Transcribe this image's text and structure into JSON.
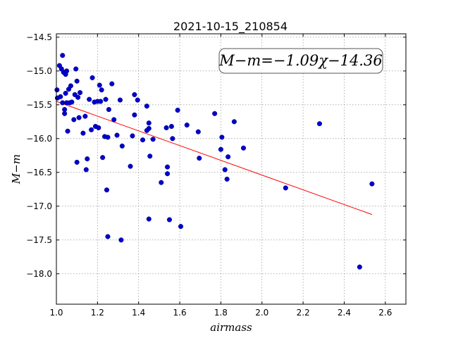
{
  "chart_data": {
    "type": "scatter",
    "title": "2021-10-15_210854",
    "xlabel": "airmass",
    "ylabel": "M−m",
    "xlim": [
      1.0,
      2.7
    ],
    "ylim": [
      -18.45,
      -14.45
    ],
    "y_inverted": true,
    "grid": true,
    "xticks": [
      "1.0",
      "1.2",
      "1.4",
      "1.6",
      "1.8",
      "2.0",
      "2.2",
      "2.4",
      "2.6"
    ],
    "yticks": [
      "−14.5",
      "−15.0",
      "−15.5",
      "−16.0",
      "−16.5",
      "−17.0",
      "−17.5",
      "−18.0"
    ],
    "annotation": "M−m=−1.09χ−14.36",
    "point_color": "#0000cc",
    "fit_color": "#ff0000",
    "fit_line": {
      "slope": -1.09,
      "intercept": -14.36,
      "x_range": [
        1.0,
        2.535
      ]
    },
    "points": [
      [
        1.003,
        -15.28
      ],
      [
        1.005,
        -15.4
      ],
      [
        1.015,
        -14.92
      ],
      [
        1.02,
        -15.38
      ],
      [
        1.025,
        -14.97
      ],
      [
        1.03,
        -14.77
      ],
      [
        1.035,
        -15.02
      ],
      [
        1.03,
        -15.47
      ],
      [
        1.04,
        -15.57
      ],
      [
        1.04,
        -15.63
      ],
      [
        1.045,
        -15.05
      ],
      [
        1.045,
        -15.33
      ],
      [
        1.05,
        -15.47
      ],
      [
        1.05,
        -15.0
      ],
      [
        1.055,
        -15.89
      ],
      [
        1.06,
        -15.27
      ],
      [
        1.065,
        -15.47
      ],
      [
        1.07,
        -15.22
      ],
      [
        1.075,
        -15.46
      ],
      [
        1.085,
        -15.72
      ],
      [
        1.09,
        -15.35
      ],
      [
        1.095,
        -14.97
      ],
      [
        1.1,
        -15.15
      ],
      [
        1.1,
        -16.35
      ],
      [
        1.105,
        -15.39
      ],
      [
        1.11,
        -15.69
      ],
      [
        1.115,
        -15.32
      ],
      [
        1.13,
        -15.92
      ],
      [
        1.14,
        -15.67
      ],
      [
        1.145,
        -16.46
      ],
      [
        1.15,
        -16.3
      ],
      [
        1.16,
        -15.42
      ],
      [
        1.17,
        -15.87
      ],
      [
        1.175,
        -15.1
      ],
      [
        1.185,
        -15.46
      ],
      [
        1.19,
        -15.82
      ],
      [
        1.2,
        -15.45
      ],
      [
        1.205,
        -15.84
      ],
      [
        1.21,
        -15.21
      ],
      [
        1.215,
        -15.45
      ],
      [
        1.22,
        -15.28
      ],
      [
        1.225,
        -16.28
      ],
      [
        1.235,
        -15.97
      ],
      [
        1.24,
        -15.42
      ],
      [
        1.245,
        -16.76
      ],
      [
        1.25,
        -15.98
      ],
      [
        1.25,
        -17.45
      ],
      [
        1.255,
        -15.57
      ],
      [
        1.27,
        -15.19
      ],
      [
        1.28,
        -15.72
      ],
      [
        1.295,
        -15.95
      ],
      [
        1.31,
        -15.43
      ],
      [
        1.315,
        -17.5
      ],
      [
        1.32,
        -16.11
      ],
      [
        1.36,
        -16.41
      ],
      [
        1.37,
        -15.96
      ],
      [
        1.38,
        -15.35
      ],
      [
        1.38,
        -15.65
      ],
      [
        1.395,
        -15.43
      ],
      [
        1.42,
        -16.02
      ],
      [
        1.44,
        -15.52
      ],
      [
        1.44,
        -15.88
      ],
      [
        1.45,
        -17.19
      ],
      [
        1.45,
        -15.77
      ],
      [
        1.45,
        -15.85
      ],
      [
        1.455,
        -16.26
      ],
      [
        1.47,
        -16.01
      ],
      [
        1.51,
        -16.65
      ],
      [
        1.535,
        -15.84
      ],
      [
        1.54,
        -16.42
      ],
      [
        1.54,
        -16.52
      ],
      [
        1.55,
        -17.2
      ],
      [
        1.56,
        -15.82
      ],
      [
        1.565,
        -16.0
      ],
      [
        1.59,
        -15.58
      ],
      [
        1.605,
        -17.3
      ],
      [
        1.635,
        -15.8
      ],
      [
        1.69,
        -15.9
      ],
      [
        1.695,
        -16.29
      ],
      [
        1.77,
        -15.63
      ],
      [
        1.8,
        -16.16
      ],
      [
        1.805,
        -15.98
      ],
      [
        1.82,
        -16.46
      ],
      [
        1.83,
        -16.6
      ],
      [
        1.835,
        -16.27
      ],
      [
        1.865,
        -15.75
      ],
      [
        1.91,
        -16.14
      ],
      [
        2.115,
        -16.73
      ],
      [
        2.28,
        -15.78
      ],
      [
        2.475,
        -17.9
      ],
      [
        2.535,
        -16.67
      ]
    ]
  }
}
